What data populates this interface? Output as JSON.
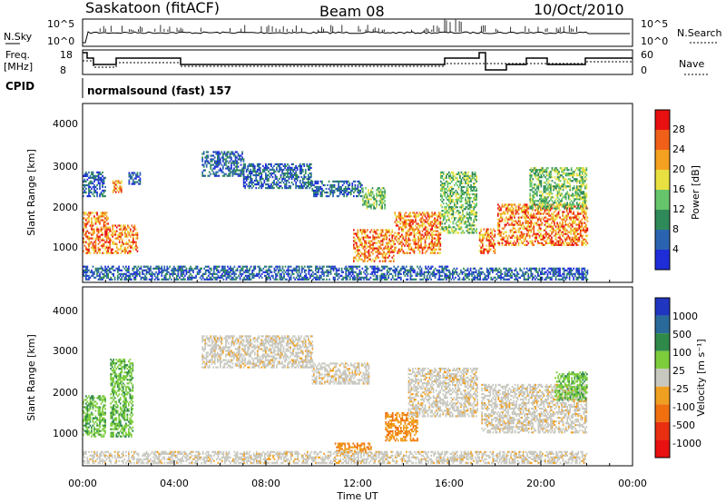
{
  "header": {
    "station": "Saskatoon (fitACF)",
    "beam": "Beam 08",
    "date": "10/Oct/2010"
  },
  "noise_panel": {
    "left_label": "N.Sky",
    "right_label": "N.Search",
    "left_ticks": [
      "10^5",
      "10^0"
    ],
    "right_ticks": [
      "10^5",
      "10^0"
    ]
  },
  "freq_panel": {
    "left_label_1": "Freq.",
    "left_label_2": "[MHz]",
    "left_ticks": [
      "18",
      "8"
    ],
    "right_label": "Nave",
    "right_ticks": [
      "60",
      "0"
    ]
  },
  "cpid": {
    "label": "CPID",
    "program": "normalsound (fast) 157"
  },
  "power_panel": {
    "ylabel": "Slant Range [km]",
    "yticks": [
      "4000",
      "3000",
      "2000",
      "1000"
    ],
    "colorbar_label": "Power [dB]",
    "colorbar_ticks": [
      "28",
      "24",
      "20",
      "16",
      "12",
      "8",
      "4"
    ],
    "colors": [
      "#1e2dd8",
      "#2a64b0",
      "#2f8a5a",
      "#66c46a",
      "#e8e040",
      "#f4a020",
      "#f06018",
      "#e81010"
    ]
  },
  "velocity_panel": {
    "ylabel": "Slant Range [km]",
    "yticks": [
      "4000",
      "3000",
      "2000",
      "1000"
    ],
    "colorbar_label": "Velocity [m s⁻¹]",
    "colorbar_ticks": [
      "1000",
      "500",
      "100",
      "25",
      "-25",
      "-100",
      "-500",
      "-1000"
    ],
    "colors": [
      "#2036c0",
      "#2a6a9a",
      "#2f8a4a",
      "#7ccc3c",
      "#c8c8c0",
      "#f0a020",
      "#f07010",
      "#e83010",
      "#e81010"
    ]
  },
  "xaxis": {
    "label": "Time UT",
    "ticks": [
      "00:00",
      "04:00",
      "08:00",
      "12:00",
      "16:00",
      "20:00",
      "00:00"
    ]
  },
  "chart_data": {
    "type": "heatmap",
    "x_unit": "hours UT",
    "xlim": [
      0,
      24
    ],
    "ylim": [
      200,
      4600
    ],
    "y_unit": "km",
    "power_regions": [
      {
        "t0": 0.0,
        "t1": 1.1,
        "r0": 900,
        "r1": 1900,
        "level": "high"
      },
      {
        "t0": 1.1,
        "t1": 2.4,
        "r0": 900,
        "r1": 1600,
        "level": "high"
      },
      {
        "t0": 0.0,
        "t1": 1.0,
        "r0": 2300,
        "r1": 2900,
        "level": "low"
      },
      {
        "t0": 1.3,
        "t1": 1.7,
        "r0": 2400,
        "r1": 2700,
        "level": "high"
      },
      {
        "t0": 2.0,
        "t1": 2.5,
        "r0": 2600,
        "r1": 2900,
        "level": "low"
      },
      {
        "t0": 5.2,
        "t1": 7.0,
        "r0": 2800,
        "r1": 3400,
        "level": "low"
      },
      {
        "t0": 7.0,
        "t1": 10.0,
        "r0": 2500,
        "r1": 3100,
        "level": "low"
      },
      {
        "t0": 10.0,
        "t1": 12.2,
        "r0": 2300,
        "r1": 2700,
        "level": "low"
      },
      {
        "t0": 12.2,
        "t1": 13.2,
        "r0": 2000,
        "r1": 2500,
        "level": "mid"
      },
      {
        "t0": 11.8,
        "t1": 13.6,
        "r0": 700,
        "r1": 1500,
        "level": "high"
      },
      {
        "t0": 13.6,
        "t1": 15.6,
        "r0": 900,
        "r1": 1900,
        "level": "high"
      },
      {
        "t0": 15.6,
        "t1": 17.2,
        "r0": 1400,
        "r1": 2900,
        "level": "mid"
      },
      {
        "t0": 17.3,
        "t1": 18.0,
        "r0": 900,
        "r1": 1500,
        "level": "high"
      },
      {
        "t0": 18.1,
        "t1": 22.0,
        "r0": 1100,
        "r1": 2100,
        "level": "high"
      },
      {
        "t0": 19.5,
        "t1": 22.0,
        "r0": 2000,
        "r1": 3000,
        "level": "mid"
      },
      {
        "t0": 0.0,
        "t1": 16.0,
        "r0": 250,
        "r1": 600,
        "level": "low"
      },
      {
        "t0": 16.0,
        "t1": 22.0,
        "r0": 250,
        "r1": 550,
        "level": "low"
      }
    ],
    "velocity_regions": [
      {
        "t0": 0.0,
        "t1": 1.0,
        "r0": 900,
        "r1": 1900,
        "band": "100..500"
      },
      {
        "t0": 1.2,
        "t1": 2.2,
        "r0": 900,
        "r1": 2800,
        "band": "100..500"
      },
      {
        "t0": 5.2,
        "t1": 10.0,
        "r0": 2600,
        "r1": 3400,
        "band": "-25..25"
      },
      {
        "t0": 10.0,
        "t1": 12.5,
        "r0": 2200,
        "r1": 2700,
        "band": "-25..25"
      },
      {
        "t0": 13.2,
        "t1": 14.6,
        "r0": 800,
        "r1": 1500,
        "band": "-100..-500"
      },
      {
        "t0": 11.0,
        "t1": 12.6,
        "r0": 500,
        "r1": 750,
        "band": "-100..-500"
      },
      {
        "t0": 14.2,
        "t1": 17.2,
        "r0": 1400,
        "r1": 2600,
        "band": "-25..25"
      },
      {
        "t0": 17.4,
        "t1": 22.0,
        "r0": 1000,
        "r1": 2200,
        "band": "-25..25"
      },
      {
        "t0": 20.6,
        "t1": 22.0,
        "r0": 1800,
        "r1": 2500,
        "band": "100..500"
      },
      {
        "t0": 0.0,
        "t1": 22.0,
        "r0": 250,
        "r1": 550,
        "band": "-25..25"
      }
    ]
  }
}
